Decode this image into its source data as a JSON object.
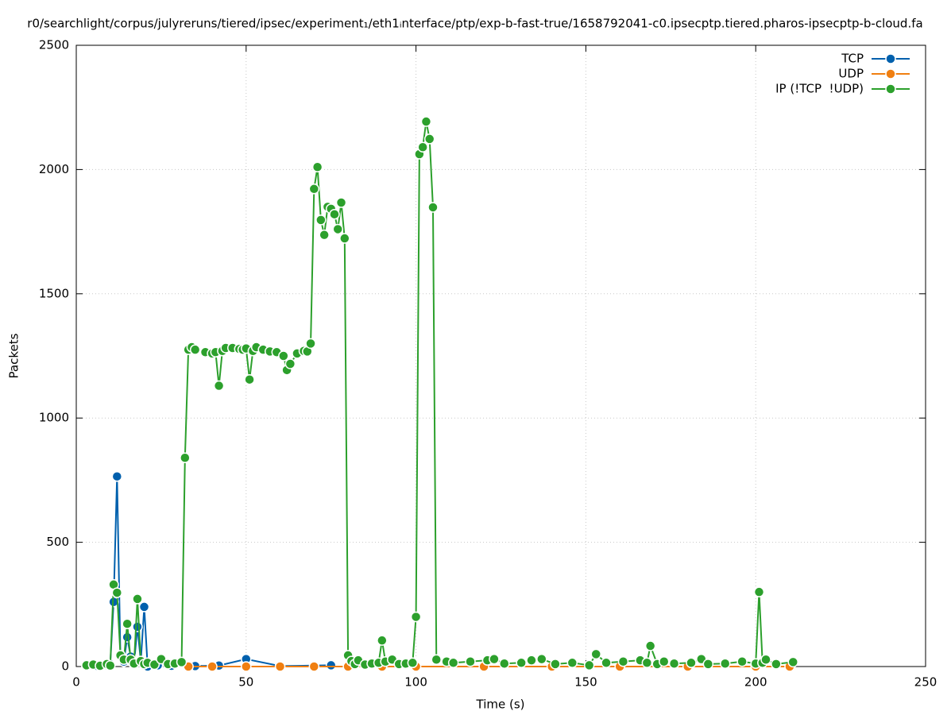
{
  "chart_data": {
    "type": "line",
    "title": "r0/searchlight/corpus/julyreruns/tiered/ipsec/experiment₁/eth1ᵢnterface/ptp/exp-b-fast-true/1658792041-c0.ipsecptp.tiered.pharos-ipsecptp-b-cloud.fa",
    "x_label": "Time (s)",
    "y_label": "Packets",
    "xlim": [
      0,
      250
    ],
    "xticks": [
      0,
      50,
      100,
      150,
      200,
      250
    ],
    "ylim": [
      0,
      2500
    ],
    "yticks": [
      0,
      500,
      1000,
      1500,
      2000,
      2500
    ],
    "grid": true,
    "legend": "top-right",
    "series": [
      {
        "name": "TCP",
        "color": "#0060ad",
        "x": [
          3,
          6,
          9,
          10,
          11,
          12,
          13,
          14,
          15,
          16,
          17,
          18,
          19,
          20,
          21,
          24,
          28,
          35,
          42,
          50,
          60,
          75
        ],
        "values": [
          2,
          3,
          5,
          10,
          260,
          765,
          40,
          20,
          118,
          40,
          10,
          160,
          20,
          240,
          0,
          5,
          3,
          2,
          4,
          30,
          2,
          5
        ]
      },
      {
        "name": "UDP",
        "color": "#f07f11",
        "x": [
          33,
          40,
          50,
          60,
          70,
          80,
          90,
          100,
          120,
          140,
          160,
          180,
          200,
          210
        ],
        "values": [
          0,
          0,
          0,
          0,
          0,
          0,
          0,
          0,
          0,
          0,
          0,
          0,
          0,
          0
        ]
      },
      {
        "name": "IP (!TCP  !UDP)",
        "color": "#2ca02c",
        "x": [
          3,
          5,
          7,
          9,
          10,
          11,
          12,
          13,
          14,
          15,
          16,
          17,
          18,
          19,
          20,
          21,
          23,
          25,
          27,
          29,
          31,
          32,
          33,
          34,
          35,
          38,
          40,
          41,
          42,
          43,
          44,
          46,
          48,
          49,
          50,
          51,
          52,
          53,
          55,
          57,
          59,
          61,
          62,
          63,
          65,
          67,
          68,
          69,
          70,
          71,
          72,
          73,
          74,
          75,
          76,
          77,
          78,
          79,
          80,
          81,
          82,
          83,
          85,
          87,
          89,
          90,
          91,
          93,
          95,
          97,
          99,
          100,
          101,
          102,
          103,
          104,
          105,
          106,
          109,
          111,
          116,
          121,
          123,
          126,
          131,
          134,
          137,
          141,
          146,
          151,
          153,
          156,
          161,
          166,
          168,
          169,
          171,
          173,
          176,
          181,
          184,
          186,
          191,
          196,
          200,
          201,
          202,
          203,
          206,
          211
        ],
        "values": [
          5,
          8,
          3,
          10,
          4,
          330,
          297,
          45,
          28,
          172,
          28,
          12,
          272,
          22,
          10,
          15,
          8,
          30,
          10,
          12,
          18,
          840,
          1275,
          1285,
          1275,
          1265,
          1260,
          1265,
          1130,
          1270,
          1282,
          1282,
          1278,
          1275,
          1280,
          1155,
          1270,
          1285,
          1275,
          1268,
          1265,
          1250,
          1193,
          1218,
          1260,
          1270,
          1268,
          1300,
          1922,
          2010,
          1797,
          1737,
          1850,
          1842,
          1820,
          1760,
          1867,
          1723,
          45,
          22,
          10,
          25,
          8,
          12,
          15,
          105,
          20,
          28,
          10,
          12,
          15,
          200,
          2062,
          2090,
          2193,
          2123,
          1848,
          28,
          20,
          15,
          20,
          25,
          30,
          12,
          15,
          25,
          30,
          10,
          15,
          5,
          50,
          15,
          20,
          25,
          15,
          83,
          10,
          20,
          12,
          15,
          30,
          10,
          12,
          20,
          12,
          300,
          15,
          28,
          10,
          18
        ]
      }
    ]
  }
}
